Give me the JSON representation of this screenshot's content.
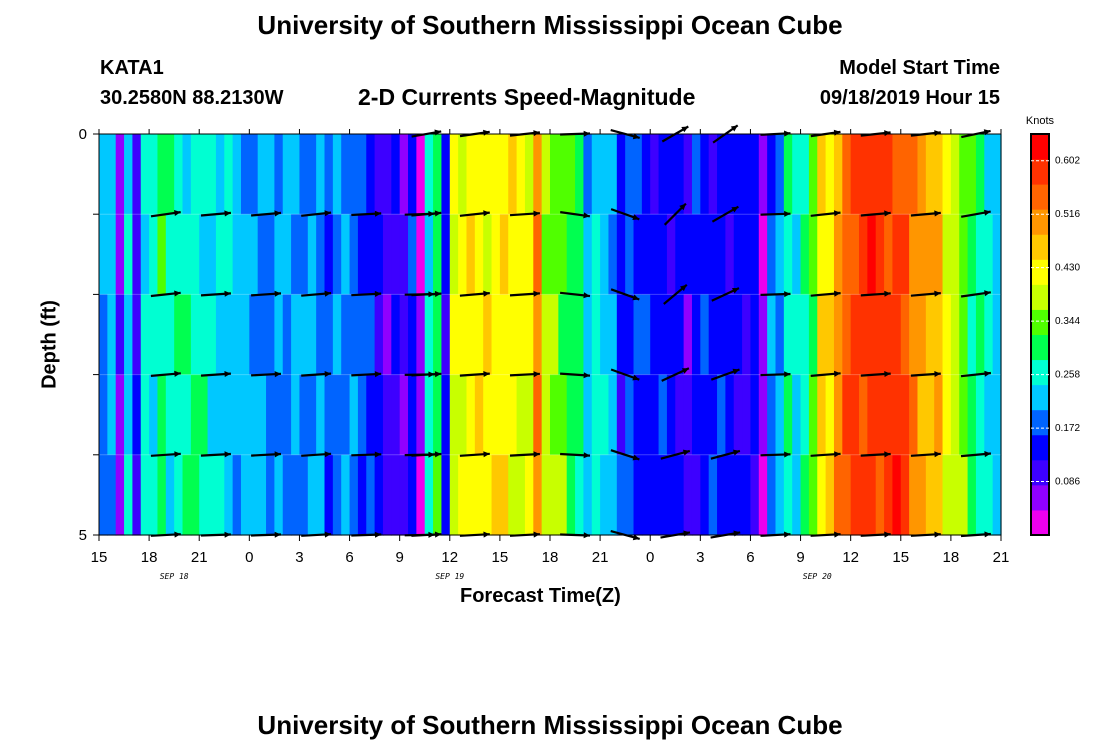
{
  "header": {
    "title": "University of Southern Mississippi Ocean Cube",
    "station_name": "KATA1",
    "station_coords": "30.2580N 88.2130W",
    "subtitle": "2-D Currents Speed-Magnitude",
    "model_label": "Model Start Time",
    "model_time": "09/18/2019 Hour 15"
  },
  "footer": {
    "title": "University of Southern Mississippi Ocean Cube"
  },
  "colors": {
    "palette": [
      "#ee00ee",
      "#9000ff",
      "#3d00ff",
      "#0000ff",
      "#0064ff",
      "#00c8ff",
      "#00ffd2",
      "#00ff50",
      "#50ff00",
      "#c8ff00",
      "#ffff00",
      "#ffc800",
      "#ff9600",
      "#ff6400",
      "#ff3200",
      "#ff0000"
    ],
    "arrow": "#000000"
  },
  "chart_data": {
    "type": "heatmap",
    "title": "2-D Currents Speed-Magnitude",
    "xlabel": "Forecast Time(Z)",
    "ylabel": "Depth (ft)",
    "xlim": [
      0,
      54
    ],
    "ylim": [
      5,
      0
    ],
    "x_tick_labels": [
      "15",
      "18",
      "21",
      "0",
      "3",
      "6",
      "9",
      "12",
      "15",
      "18",
      "21",
      "0",
      "3",
      "6",
      "9",
      "12",
      "15",
      "18",
      "21"
    ],
    "x_tick_hours": [
      0,
      3,
      6,
      9,
      12,
      15,
      18,
      21,
      24,
      27,
      30,
      33,
      36,
      39,
      42,
      45,
      48,
      51,
      54
    ],
    "date_labels": [
      {
        "text": "SEP 18",
        "hour": 4.5
      },
      {
        "text": "SEP 19",
        "hour": 21
      },
      {
        "text": "SEP 20",
        "hour": 43
      }
    ],
    "y_tick_labels": [
      {
        "value": 0,
        "text": "0"
      },
      {
        "value": 5,
        "text": "5"
      }
    ],
    "y_minor_ticks": [
      1,
      2,
      3,
      4
    ],
    "colorbar": {
      "unit": "Knots",
      "min": 0.0,
      "max": 0.645,
      "labels": [
        "0.602",
        "0.516",
        "0.430",
        "0.344",
        "0.258",
        "0.172",
        "0.086"
      ],
      "label_values": [
        0.602,
        0.516,
        0.43,
        0.344,
        0.258,
        0.172,
        0.086
      ]
    },
    "speed_hours": [
      0,
      3,
      6,
      9,
      12,
      15,
      18,
      21,
      24,
      27,
      30,
      33,
      36,
      39,
      42,
      45,
      48,
      51,
      54
    ],
    "speed_base": [
      0.19,
      0.26,
      0.27,
      0.21,
      0.2,
      0.2,
      0.06,
      0.4,
      0.44,
      0.38,
      0.24,
      0.13,
      0.15,
      0.13,
      0.25,
      0.58,
      0.58,
      0.4,
      0.2
    ],
    "speed_column_variants": [
      {
        "hour": 1,
        "value": 0.06
      },
      {
        "hour": 2,
        "value": 0.1
      },
      {
        "hour": 3.5,
        "value": 0.3
      },
      {
        "hour": 5,
        "value": 0.27
      },
      {
        "hour": 8,
        "value": 0.21
      },
      {
        "hour": 10,
        "value": 0.19
      },
      {
        "hour": 13.5,
        "value": 0.17
      },
      {
        "hour": 16,
        "value": 0.15
      },
      {
        "hour": 17.5,
        "value": 0.12
      },
      {
        "hour": 19,
        "value": 0.03
      },
      {
        "hour": 20.5,
        "value": 0.13
      },
      {
        "hour": 22,
        "value": 0.42
      },
      {
        "hour": 26,
        "value": 0.52
      },
      {
        "hour": 28,
        "value": 0.3
      },
      {
        "hour": 29,
        "value": 0.22
      },
      {
        "hour": 31,
        "value": 0.14
      },
      {
        "hour": 35,
        "value": 0.1
      },
      {
        "hour": 39.5,
        "value": 0.05
      },
      {
        "hour": 41,
        "value": 0.28
      },
      {
        "hour": 43,
        "value": 0.44
      },
      {
        "hour": 50,
        "value": 0.48
      },
      {
        "hour": 52,
        "value": 0.3
      }
    ],
    "depth_rows": 5,
    "arrow_depths": [
      0,
      1,
      2,
      3,
      4,
      5
    ],
    "arrows": [
      {
        "hour": 19.6,
        "angles": [
          10,
          5,
          3,
          3,
          3,
          3
        ]
      },
      {
        "hour": 22.5,
        "angles": [
          8,
          6,
          5,
          4,
          4,
          3
        ]
      },
      {
        "hour": 25.5,
        "angles": [
          6,
          4,
          4,
          3,
          3,
          3
        ]
      },
      {
        "hour": 28.5,
        "angles": [
          2,
          -8,
          -6,
          -4,
          -3,
          -2
        ]
      },
      {
        "hour": 31.5,
        "angles": [
          -15,
          -20,
          -20,
          -20,
          -18,
          -15
        ]
      },
      {
        "hour": 34.5,
        "angles": [
          30,
          45,
          40,
          25,
          15,
          10
        ]
      },
      {
        "hour": 37.5,
        "angles": [
          35,
          30,
          25,
          20,
          15,
          10
        ]
      },
      {
        "hour": 40.5,
        "angles": [
          3,
          2,
          2,
          2,
          2,
          3
        ]
      },
      {
        "hour": 43.5,
        "angles": [
          8,
          6,
          5,
          5,
          4,
          3
        ]
      },
      {
        "hour": 46.5,
        "angles": [
          6,
          5,
          4,
          4,
          3,
          3
        ]
      },
      {
        "hour": 49.5,
        "angles": [
          6,
          5,
          5,
          4,
          4,
          3
        ]
      },
      {
        "hour": 52.5,
        "angles": [
          12,
          10,
          8,
          6,
          5,
          4
        ]
      }
    ],
    "arrows_early": [
      {
        "hour": 4,
        "angles": [
          10,
          8,
          6,
          5,
          4,
          3
        ]
      },
      {
        "hour": 7,
        "angles": [
          6,
          5,
          4,
          4,
          3,
          2
        ]
      },
      {
        "hour": 10,
        "angles": [
          6,
          5,
          4,
          3,
          3,
          2
        ]
      },
      {
        "hour": 13,
        "angles": [
          8,
          6,
          5,
          4,
          4,
          3
        ]
      },
      {
        "hour": 16,
        "angles": [
          4,
          3,
          3,
          3,
          2,
          2
        ]
      },
      {
        "hour": 19.2,
        "angles": [
          2,
          2,
          1,
          1,
          1,
          1
        ]
      }
    ]
  }
}
